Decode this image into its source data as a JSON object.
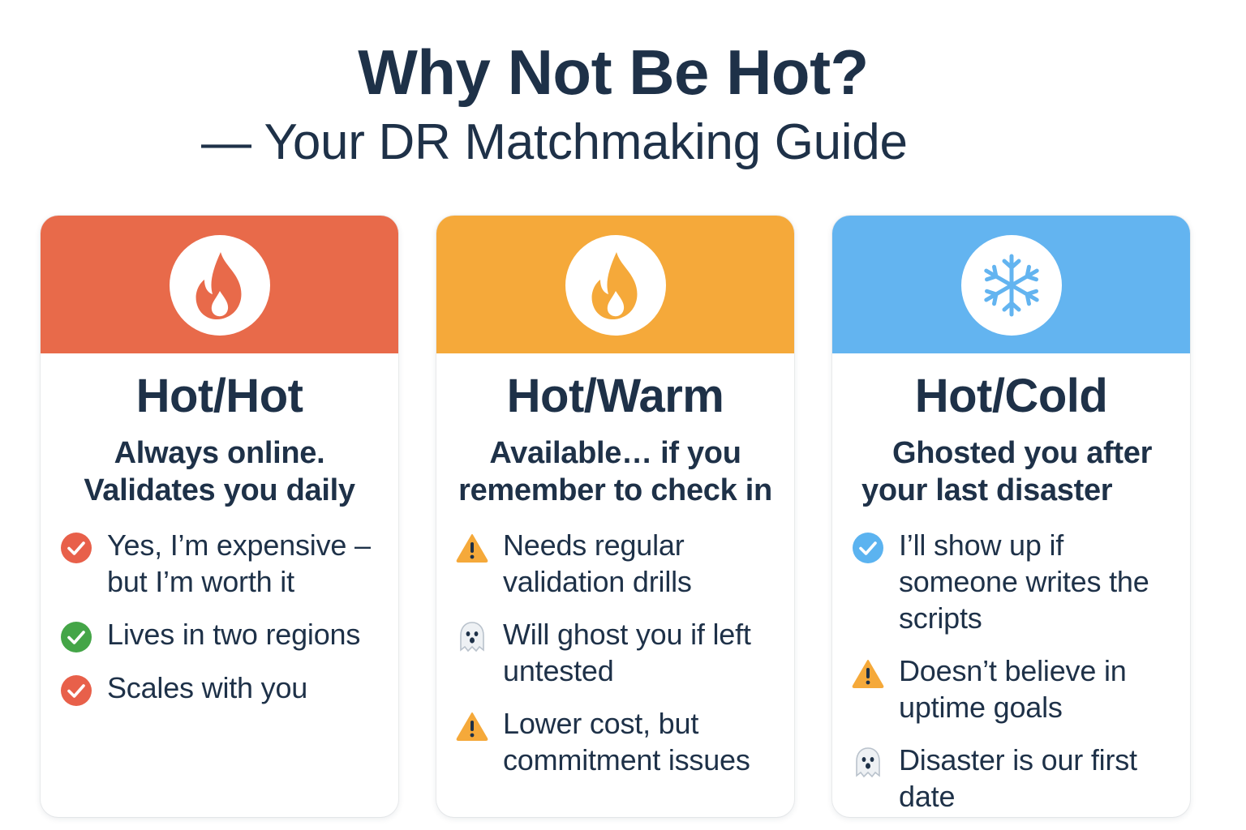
{
  "title": {
    "line1": "Why Not Be Hot?",
    "line2": "— Your DR Matchmaking Guide"
  },
  "colors": {
    "hot": "#e86a4a",
    "warm": "#f5a93a",
    "cold": "#63b4f0",
    "text": "#1e3148",
    "check_red": "#e8604a",
    "check_green": "#44a547",
    "check_blue": "#5bb3f0",
    "warning": "#f5a93a"
  },
  "cards": [
    {
      "header_icon": "fire-icon",
      "title": "Hot/Hot",
      "subtitle": "Always online. Validates you daily",
      "items": [
        {
          "icon": "check-red-icon",
          "text": "Yes, I’m expensive – but I’m worth it"
        },
        {
          "icon": "check-green-icon",
          "text": "Lives in two regions"
        },
        {
          "icon": "check-red-icon",
          "text": "Scales with you"
        }
      ]
    },
    {
      "header_icon": "fire-icon",
      "title": "Hot/Warm",
      "subtitle": "Available… if you remember to check in",
      "items": [
        {
          "icon": "warning-icon",
          "text": "Needs regular validation drills"
        },
        {
          "icon": "ghost-icon",
          "text": "Will ghost you if left untested"
        },
        {
          "icon": "warning-icon",
          "text": "Lower cost, but commitment issues"
        }
      ]
    },
    {
      "header_icon": "snowflake-icon",
      "title": "Hot/Cold",
      "subtitle_line1": "Ghosted you after",
      "subtitle_line2": "your last disaster",
      "items": [
        {
          "icon": "check-blue-icon",
          "text": "I’ll show up if someone writes the scripts"
        },
        {
          "icon": "warning-icon",
          "text": "Doesn’t believe in uptime goals"
        },
        {
          "icon": "ghost-icon",
          "text": "Disaster is our first date"
        }
      ]
    }
  ]
}
